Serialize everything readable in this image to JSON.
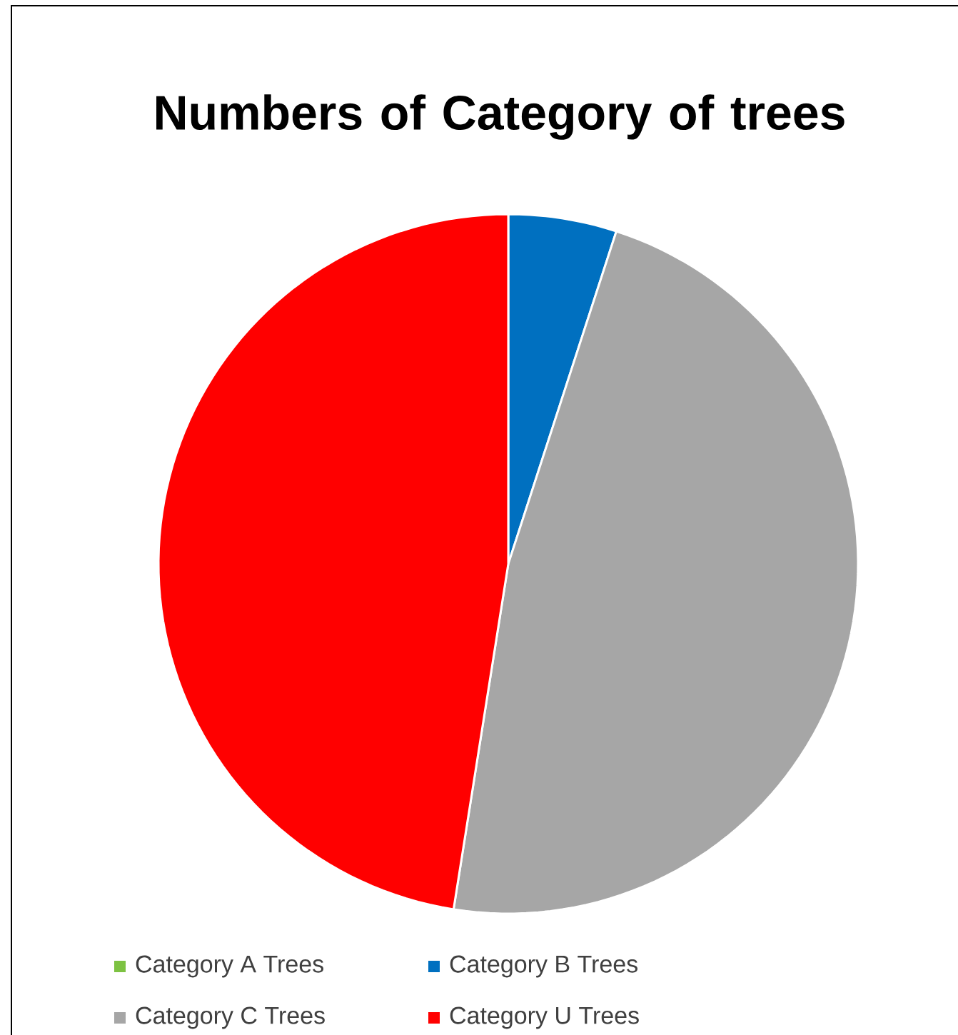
{
  "chart_data": {
    "type": "pie",
    "title": "Numbers of Category of trees",
    "categories": [
      "Category A Trees",
      "Category B Trees",
      "Category C Trees",
      "Category U Trees"
    ],
    "values": [
      0,
      5,
      47.5,
      47.5
    ],
    "colors": [
      "#7dc242",
      "#0070c0",
      "#a6a6a6",
      "#ff0000"
    ],
    "legend": "bottom"
  }
}
